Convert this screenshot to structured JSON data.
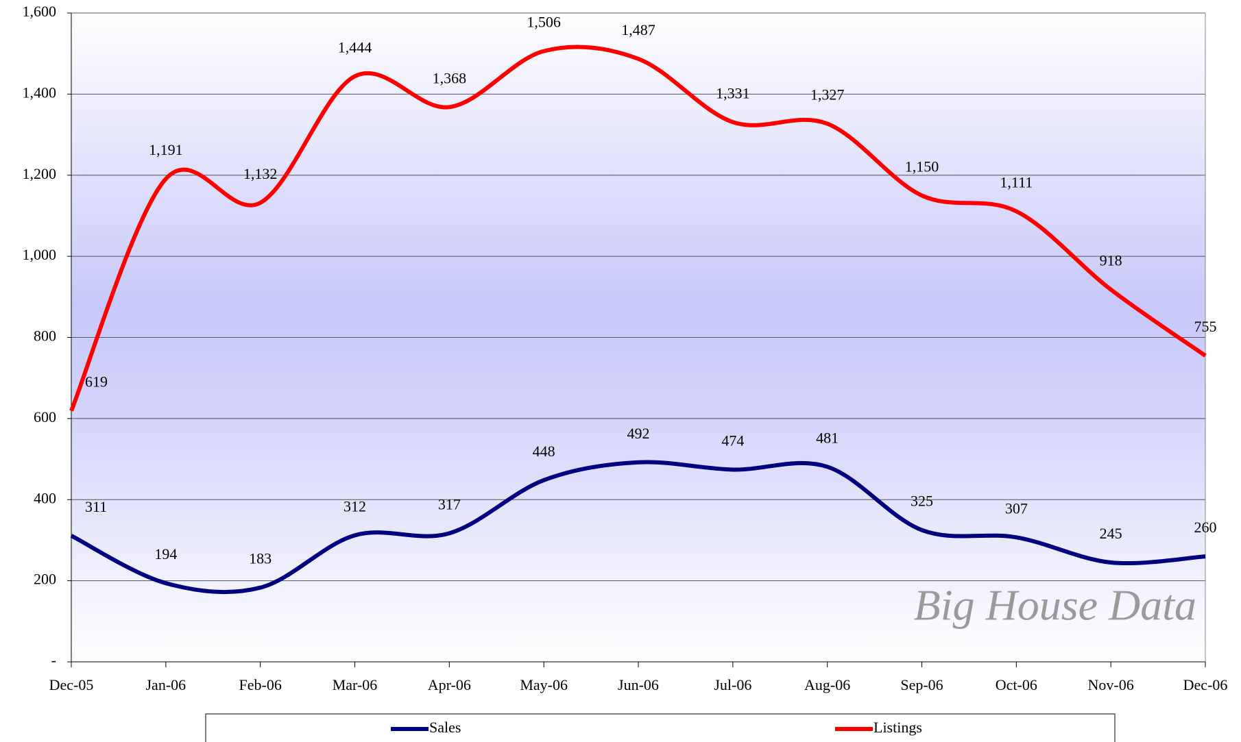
{
  "chart_data": {
    "type": "line",
    "categories": [
      "Dec-05",
      "Jan-06",
      "Feb-06",
      "Mar-06",
      "Apr-06",
      "May-06",
      "Jun-06",
      "Jul-06",
      "Aug-06",
      "Sep-06",
      "Oct-06",
      "Nov-06",
      "Dec-06"
    ],
    "series": [
      {
        "name": "Sales",
        "color": "#000080",
        "values": [
          311,
          194,
          183,
          312,
          317,
          448,
          492,
          474,
          481,
          325,
          307,
          245,
          260
        ]
      },
      {
        "name": "Listings",
        "color": "#ff0000",
        "values": [
          619,
          1191,
          1132,
          1444,
          1368,
          1506,
          1487,
          1331,
          1327,
          1150,
          1111,
          918,
          755
        ],
        "value_labels": [
          "619",
          "1,191",
          "1,132",
          "1,444",
          "1,368",
          "1,506",
          "1,487",
          "1,331",
          "1,327",
          "1,150",
          "1,111",
          "918",
          "755"
        ]
      }
    ],
    "ylim": [
      0,
      1600
    ],
    "yticks": [
      {
        "value": 0,
        "label": "-"
      },
      200,
      400,
      600,
      800,
      {
        "value": 1000,
        "label": "1,000"
      },
      {
        "value": 1200,
        "label": "1,200"
      },
      {
        "value": 1400,
        "label": "1,400"
      },
      {
        "value": 1600,
        "label": "1,600"
      }
    ],
    "grid": true,
    "smooth": true,
    "legend": "bottom",
    "watermark": "Big House Data"
  }
}
